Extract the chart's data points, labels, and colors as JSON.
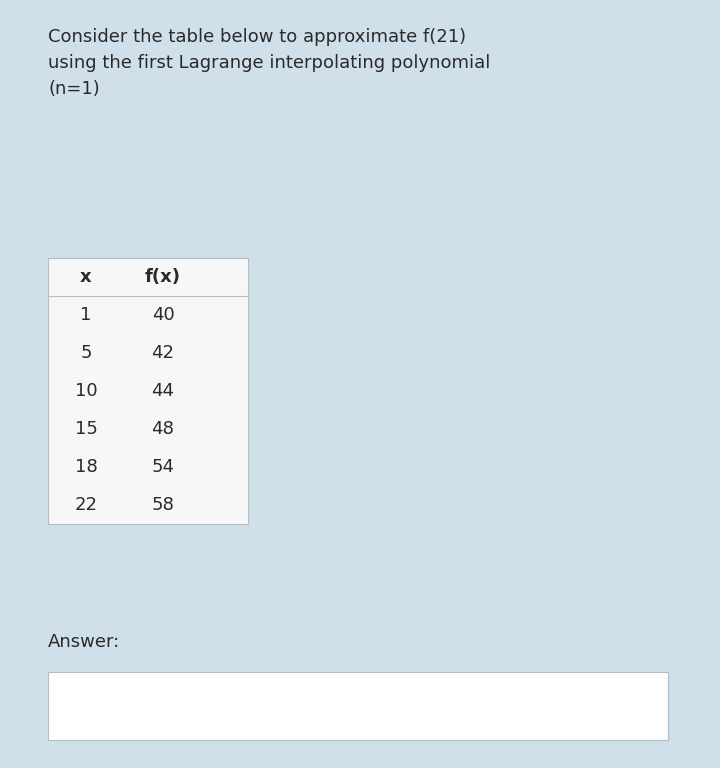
{
  "background_color": "#cfe0ea",
  "title_lines": [
    "Consider the table below to approximate f(21)",
    "using the first Lagrange interpolating polynomial",
    "(n=1)"
  ],
  "table_header": [
    "x",
    "f(x)"
  ],
  "table_data": [
    [
      1,
      40
    ],
    [
      5,
      42
    ],
    [
      10,
      44
    ],
    [
      15,
      48
    ],
    [
      18,
      54
    ],
    [
      22,
      58
    ]
  ],
  "answer_label": "Answer:",
  "title_fontsize": 13.0,
  "table_fontsize": 13.0,
  "answer_fontsize": 13.0,
  "text_color": "#2a2a2a",
  "table_bg": "#f7f7f7",
  "table_border_color": "#bbbbbb",
  "answer_box_bg": "#ffffff",
  "answer_box_border": "#bbbbbb"
}
